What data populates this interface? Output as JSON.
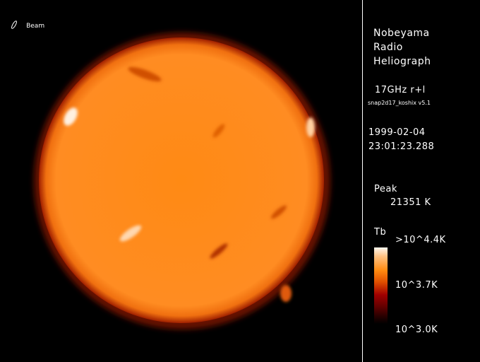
{
  "beam": {
    "label": "Beam",
    "icon": "beam-ellipse-icon"
  },
  "header": {
    "line1": "Nobeyama",
    "line2": "Radio",
    "line3": "Heliograph"
  },
  "observation": {
    "frequency": "17GHz r+l",
    "software": "snap2d17_koshix v5.1",
    "date": "1999-02-04",
    "time": "23:01:23.288"
  },
  "peak": {
    "label": "Peak",
    "value": "21351 K"
  },
  "colorbar": {
    "title": "Tb",
    "max_label": ">10^4.4K",
    "mid_label": "10^3.7K",
    "min_label": "10^3.0K"
  },
  "colors": {
    "disk": "#ff8c1a",
    "limb": "#c03000",
    "background": "#000000"
  }
}
